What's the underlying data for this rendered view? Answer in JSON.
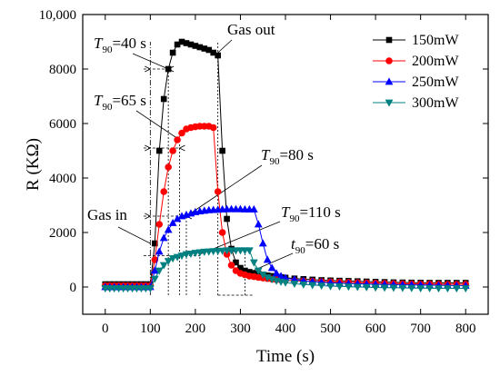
{
  "chart_data": {
    "type": "line",
    "xlabel": "Time (s)",
    "ylabel": "R (KΩ)",
    "xlim": [
      -50,
      850
    ],
    "ylim": [
      -1000,
      10000
    ],
    "x_ticks": [
      0,
      100,
      200,
      300,
      400,
      500,
      600,
      700,
      800
    ],
    "y_ticks": [
      0,
      2000,
      4000,
      6000,
      8000,
      10000
    ],
    "y_tick_labels": [
      "0",
      "2000",
      "4000",
      "6000",
      "8000",
      "10,000"
    ],
    "legend_position": "top-right",
    "series": [
      {
        "name": "150mW",
        "color": "#000000",
        "marker": "square",
        "x": [
          0,
          10,
          20,
          30,
          40,
          50,
          60,
          70,
          80,
          90,
          100,
          110,
          120,
          130,
          140,
          150,
          160,
          170,
          180,
          190,
          200,
          210,
          220,
          230,
          240,
          250,
          260,
          270,
          280,
          290,
          300,
          310,
          320,
          330,
          340,
          350,
          360,
          370,
          380,
          390,
          400,
          420,
          440,
          460,
          480,
          500,
          520,
          540,
          560,
          580,
          600,
          620,
          640,
          660,
          680,
          700,
          720,
          740,
          760,
          780,
          800
        ],
        "y": [
          100,
          100,
          100,
          100,
          100,
          100,
          100,
          100,
          100,
          100,
          100,
          1600,
          5000,
          6900,
          8000,
          8600,
          8900,
          9000,
          8950,
          8900,
          8850,
          8800,
          8750,
          8700,
          8600,
          8500,
          5000,
          2500,
          1400,
          900,
          700,
          600,
          550,
          500,
          480,
          450,
          420,
          400,
          380,
          360,
          340,
          310,
          290,
          270,
          250,
          240,
          230,
          220,
          210,
          200,
          190,
          180,
          170,
          165,
          160,
          155,
          150,
          150,
          150,
          150,
          150
        ]
      },
      {
        "name": "200mW",
        "color": "#ff0000",
        "marker": "circle",
        "x": [
          0,
          10,
          20,
          30,
          40,
          50,
          60,
          70,
          80,
          90,
          100,
          110,
          120,
          130,
          140,
          150,
          160,
          170,
          180,
          190,
          200,
          210,
          220,
          230,
          240,
          250,
          260,
          270,
          280,
          290,
          300,
          310,
          320,
          330,
          340,
          350,
          360,
          370,
          380,
          390,
          400,
          420,
          440,
          460,
          480,
          500,
          520,
          540,
          560,
          580,
          600,
          620,
          640,
          660,
          680,
          700,
          720,
          740,
          760,
          780,
          800
        ],
        "y": [
          50,
          50,
          50,
          50,
          50,
          50,
          50,
          50,
          50,
          50,
          50,
          1000,
          2300,
          3500,
          4400,
          5000,
          5400,
          5650,
          5800,
          5850,
          5880,
          5900,
          5900,
          5900,
          5850,
          3500,
          2000,
          1200,
          800,
          600,
          500,
          450,
          400,
          380,
          350,
          330,
          310,
          290,
          270,
          260,
          250,
          230,
          220,
          210,
          200,
          190,
          180,
          170,
          160,
          150,
          140,
          130,
          125,
          120,
          115,
          110,
          105,
          100,
          100,
          100,
          100
        ]
      },
      {
        "name": "250mW",
        "color": "#0000ff",
        "marker": "triangle-up",
        "x": [
          0,
          10,
          20,
          30,
          40,
          50,
          60,
          70,
          80,
          90,
          100,
          110,
          120,
          130,
          140,
          150,
          160,
          170,
          180,
          190,
          200,
          210,
          220,
          230,
          240,
          250,
          260,
          270,
          280,
          290,
          300,
          310,
          320,
          330,
          340,
          350,
          360,
          370,
          380,
          390,
          400,
          420,
          440,
          460,
          480,
          500,
          520,
          540,
          560,
          580,
          600,
          620,
          640,
          660,
          680,
          700,
          720,
          740,
          760,
          780,
          800
        ],
        "y": [
          0,
          0,
          0,
          0,
          0,
          0,
          0,
          0,
          0,
          0,
          0,
          600,
          1300,
          1800,
          2100,
          2350,
          2500,
          2600,
          2650,
          2700,
          2750,
          2780,
          2800,
          2820,
          2830,
          2840,
          2850,
          2860,
          2860,
          2860,
          2860,
          2850,
          2850,
          2850,
          2300,
          1600,
          1000,
          700,
          500,
          400,
          330,
          280,
          230,
          200,
          180,
          160,
          140,
          130,
          120,
          110,
          100,
          95,
          90,
          85,
          80,
          75,
          70,
          65,
          60,
          55,
          50
        ]
      },
      {
        "name": "300mW",
        "color": "#008080",
        "marker": "triangle-down",
        "x": [
          0,
          10,
          20,
          30,
          40,
          50,
          60,
          70,
          80,
          90,
          100,
          110,
          120,
          130,
          140,
          150,
          160,
          170,
          180,
          190,
          200,
          210,
          220,
          230,
          240,
          250,
          260,
          270,
          280,
          290,
          300,
          310,
          320,
          330,
          340,
          350,
          360,
          370,
          380,
          390,
          400,
          420,
          440,
          460,
          480,
          500,
          520,
          540,
          560,
          580,
          600,
          620,
          640,
          660,
          680,
          700,
          720,
          740,
          760,
          780,
          800
        ],
        "y": [
          -50,
          -50,
          -50,
          -50,
          -50,
          -50,
          -50,
          -50,
          -50,
          -50,
          -50,
          300,
          600,
          800,
          950,
          1050,
          1100,
          1150,
          1200,
          1220,
          1250,
          1270,
          1290,
          1300,
          1310,
          1320,
          1330,
          1340,
          1340,
          1340,
          1340,
          1340,
          1340,
          900,
          600,
          450,
          350,
          280,
          230,
          190,
          160,
          120,
          90,
          70,
          50,
          30,
          20,
          10,
          0,
          -10,
          -20,
          -25,
          -30,
          -35,
          -40,
          -45,
          -45,
          -50,
          -50,
          -50,
          -50
        ]
      }
    ],
    "annotations": {
      "gas_in": "Gas in",
      "gas_out": "Gas out",
      "t150": {
        "sym": "T",
        "sub": "90",
        "value": "=40 s"
      },
      "t200": {
        "sym": "T",
        "sub": "90",
        "value": "=65 s"
      },
      "t250": {
        "sym": "T",
        "sub": "90",
        "value": "=80 s"
      },
      "t300": {
        "sym": "T",
        "sub": "90",
        "value": "=110 s"
      },
      "t300r": {
        "sym": "t",
        "sub": "90",
        "value": "=60 s"
      }
    }
  }
}
